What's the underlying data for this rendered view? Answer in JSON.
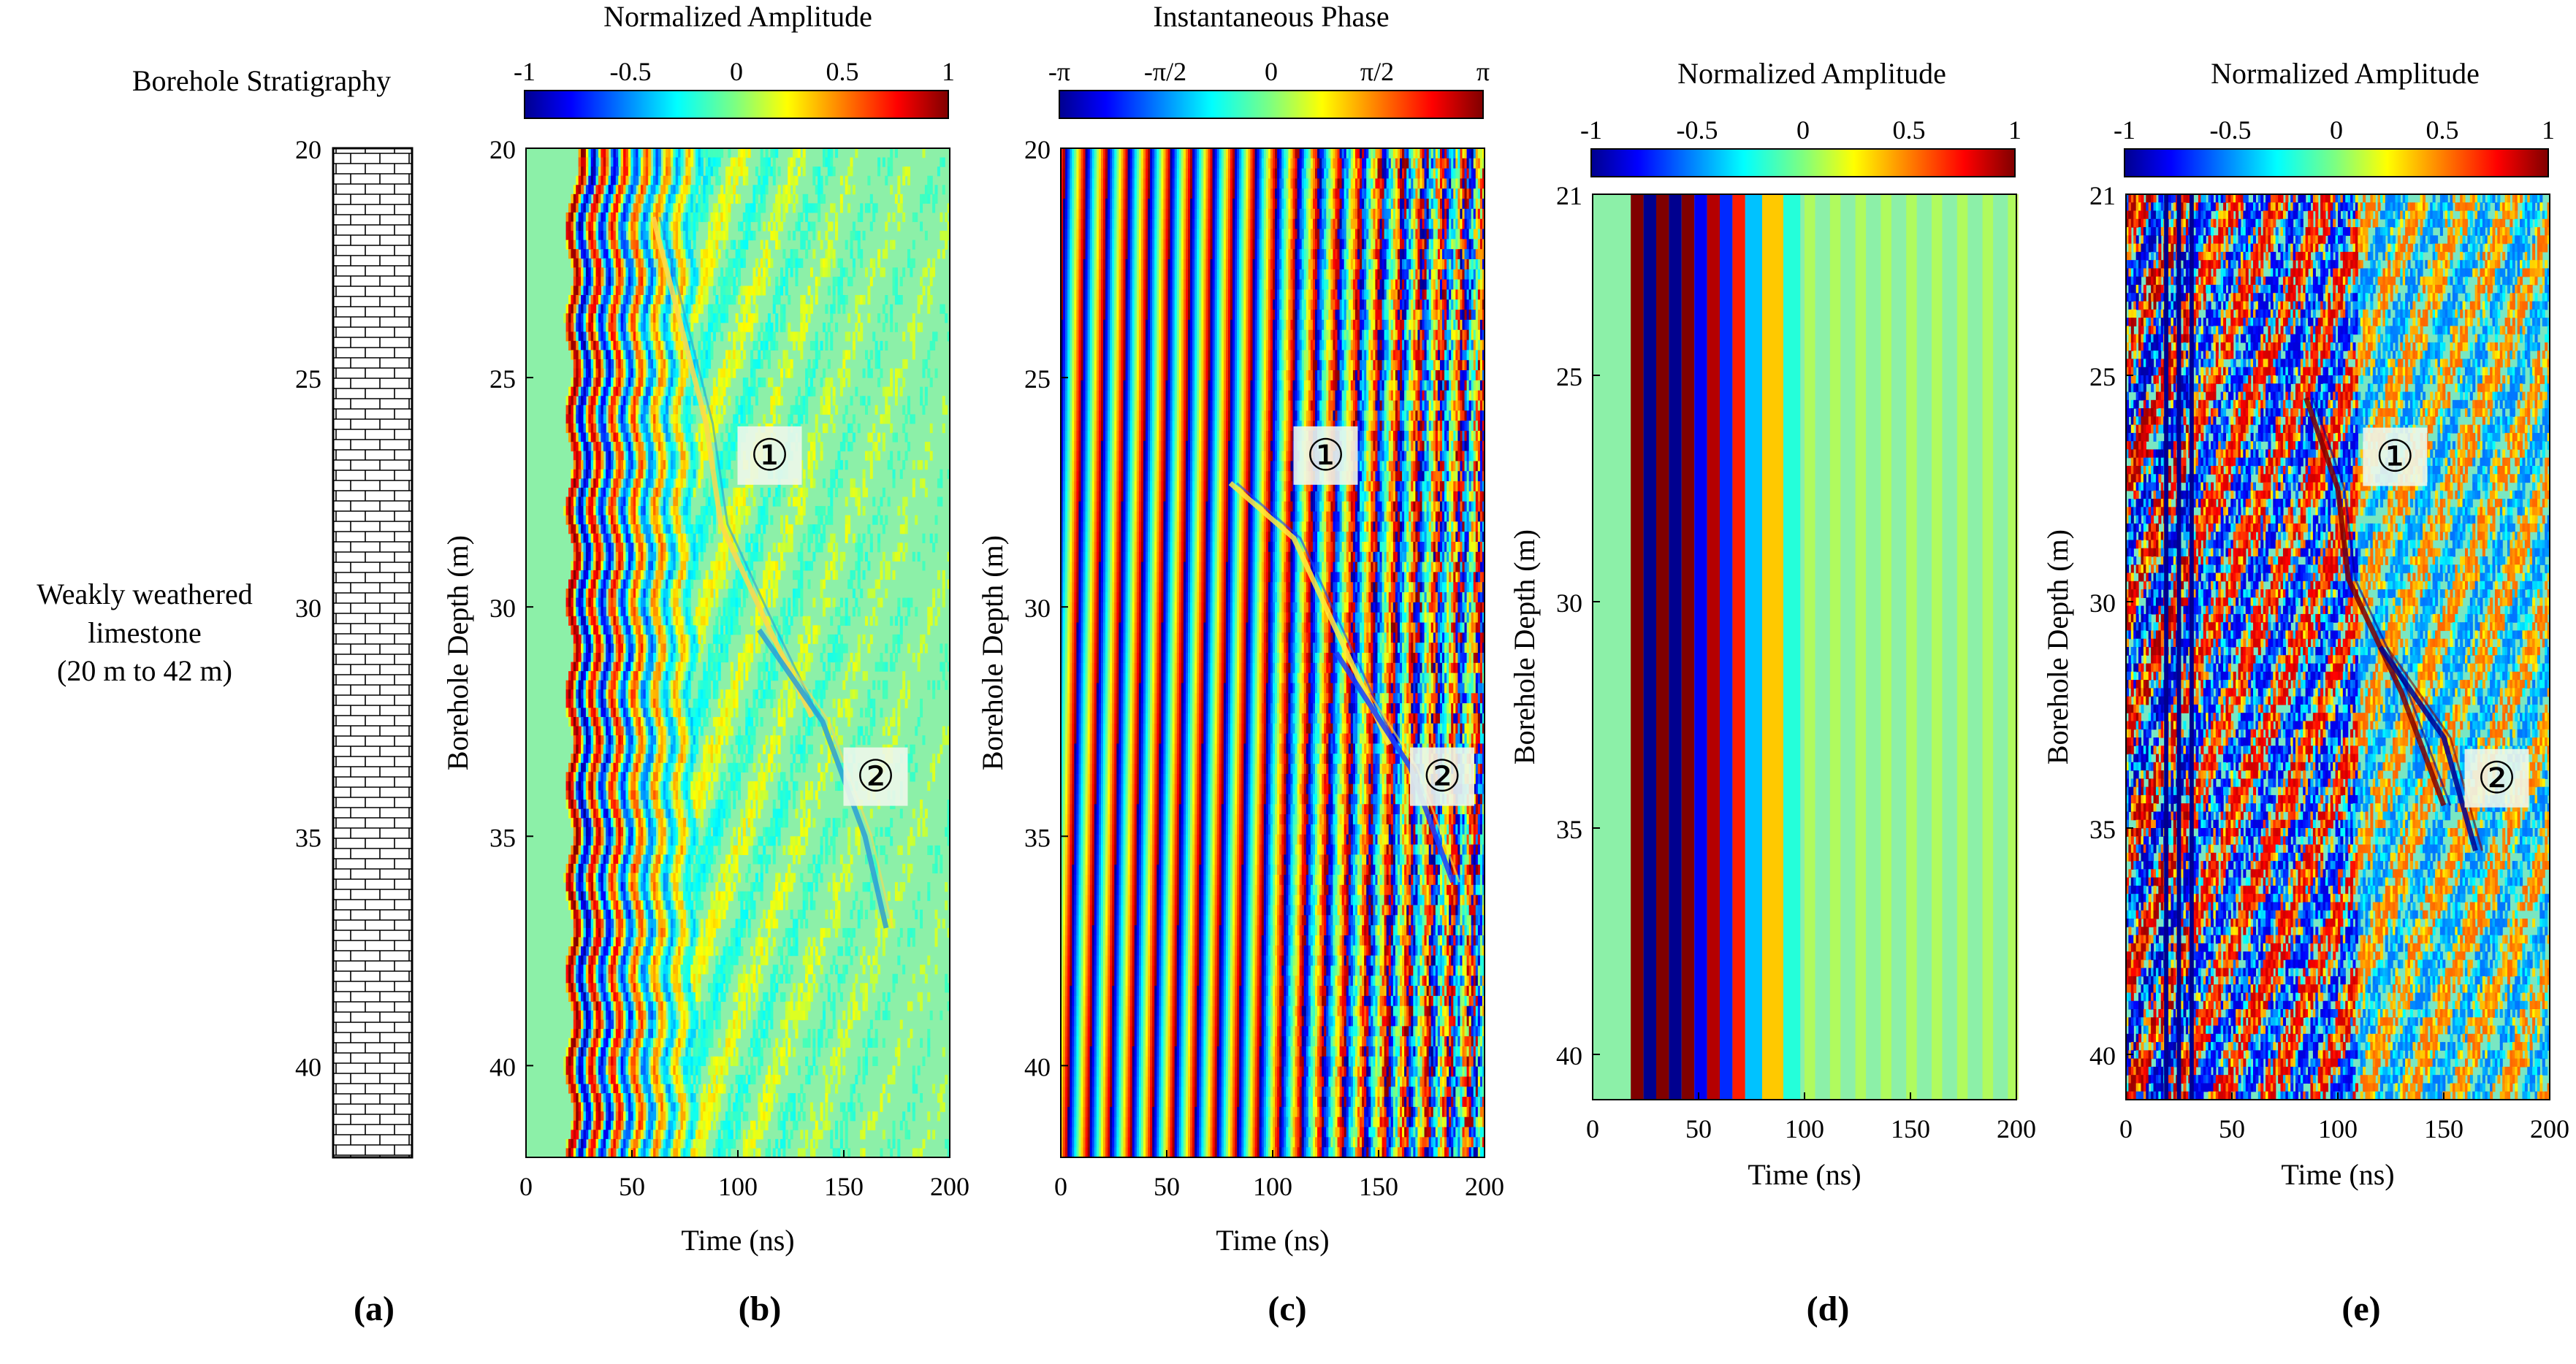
{
  "figure": {
    "panel_letters": [
      "(a)",
      "(b)",
      "(c)",
      "(d)",
      "(e)"
    ]
  },
  "chart_data": [
    {
      "id": "a",
      "type": "stratigraphic-column",
      "title": "Borehole Stratigraphy",
      "ylim": [
        20,
        42
      ],
      "yticks": [
        20,
        25,
        30,
        35,
        40
      ],
      "layer_label": [
        "Weakly weathered",
        "limestone",
        "(20 m to 42 m)"
      ],
      "layer_top": 20,
      "layer_bottom": 42,
      "pattern": "brick"
    },
    {
      "id": "b",
      "type": "heatmap",
      "colorbar_title": "Normalized Amplitude",
      "colorbar_ticks": [
        "-1",
        "-0.5",
        "0",
        "0.5",
        "1"
      ],
      "colorbar_range": [
        -1,
        1
      ],
      "colormap": "jet",
      "xlabel": "Time (ns)",
      "ylabel": "Borehole Depth (m)",
      "xlim": [
        0,
        200
      ],
      "ylim": [
        20,
        42
      ],
      "xticks": [
        0,
        50,
        100,
        150,
        200
      ],
      "yticks": [
        20,
        25,
        30,
        35,
        40
      ],
      "direct_wave_start_ns": 20,
      "direct_wave_band_ns": 60,
      "reflections": [
        {
          "marker": "①",
          "marker_at": [
            115,
            26.7
          ],
          "curve": [
            [
              60,
              21.5
            ],
            [
              85,
              26
            ],
            [
              92,
              28.2
            ],
            [
              112,
              30.2
            ],
            [
              135,
              32.4
            ]
          ]
        },
        {
          "marker": "②",
          "marker_at": [
            165,
            33.7
          ],
          "curve": [
            [
              110,
              30.5
            ],
            [
              140,
              32.5
            ],
            [
              160,
              35
            ],
            [
              170,
              37
            ]
          ]
        }
      ]
    },
    {
      "id": "c",
      "type": "heatmap",
      "colorbar_title": "Instantaneous Phase",
      "colorbar_ticks": [
        "-π",
        "-π/2",
        "0",
        "π/2",
        "π"
      ],
      "colorbar_range": [
        -3.1416,
        3.1416
      ],
      "colormap": "jet",
      "xlabel": "Time (ns)",
      "ylabel": "Borehole Depth (m)",
      "xlim": [
        0,
        200
      ],
      "ylim": [
        20,
        42
      ],
      "xticks": [
        0,
        50,
        100,
        150,
        200
      ],
      "yticks": [
        20,
        25,
        30,
        35,
        40
      ],
      "reflections": [
        {
          "marker": "①",
          "marker_at": [
            125,
            26.7
          ],
          "curve": [
            [
              80,
              27.3
            ],
            [
              110,
              28.5
            ],
            [
              130,
              30.5
            ],
            [
              155,
              33
            ]
          ]
        },
        {
          "marker": "②",
          "marker_at": [
            180,
            33.7
          ],
          "curve": [
            [
              130,
              31
            ],
            [
              165,
              33.5
            ],
            [
              185,
              36
            ]
          ]
        }
      ]
    },
    {
      "id": "d",
      "type": "heatmap",
      "colorbar_title": "Normalized Amplitude",
      "colorbar_ticks": [
        "-1",
        "-0.5",
        "0",
        "0.5",
        "1"
      ],
      "colorbar_range": [
        -1,
        1
      ],
      "colormap": "jet",
      "xlabel": "Time (ns)",
      "ylabel": "Borehole Depth (m)",
      "xlim": [
        0,
        200
      ],
      "ylim": [
        21,
        41
      ],
      "xticks": [
        0,
        50,
        100,
        150,
        200
      ],
      "yticks": [
        25,
        30,
        35,
        40
      ],
      "ytick_labels": [
        "21",
        "25",
        "30",
        "35",
        "40"
      ],
      "ytick_label_values": [
        21,
        25,
        30,
        35,
        40
      ],
      "vertical_bands": [
        {
          "t": 18,
          "v": 1
        },
        {
          "t": 24,
          "v": -1
        },
        {
          "t": 30,
          "v": 1
        },
        {
          "t": 36,
          "v": -1
        },
        {
          "t": 42,
          "v": 1
        },
        {
          "t": 48,
          "v": -0.8
        },
        {
          "t": 54,
          "v": 0.9
        },
        {
          "t": 60,
          "v": -0.7
        },
        {
          "t": 66,
          "v": 0.7
        },
        {
          "t": 72,
          "v": -0.4
        },
        {
          "t": 80,
          "v": 0.35
        },
        {
          "t": 90,
          "v": -0.2
        }
      ]
    },
    {
      "id": "e",
      "type": "heatmap",
      "colorbar_title": "Normalized Amplitude",
      "colorbar_ticks": [
        "-1",
        "-0.5",
        "0",
        "0.5",
        "1"
      ],
      "colorbar_range": [
        -1,
        1
      ],
      "colormap": "jet",
      "xlabel": "Time (ns)",
      "ylabel": "Borehole Depth (m)",
      "xlim": [
        0,
        200
      ],
      "ylim": [
        21,
        41
      ],
      "xticks": [
        0,
        50,
        100,
        150,
        200
      ],
      "yticks": [
        25,
        30,
        35,
        40
      ],
      "ytick_labels": [
        "21",
        "25",
        "30",
        "35",
        "40"
      ],
      "ytick_label_values": [
        21,
        25,
        30,
        35,
        40
      ],
      "reflections": [
        {
          "marker": "①",
          "marker_at": [
            127,
            26.8
          ],
          "curve": [
            [
              85,
              25.5
            ],
            [
              100,
              27.5
            ],
            [
              105,
              29.5
            ],
            [
              130,
              32
            ],
            [
              150,
              34.5
            ]
          ]
        },
        {
          "marker": "②",
          "marker_at": [
            175,
            33.9
          ],
          "curve": [
            [
              120,
              31
            ],
            [
              150,
              33
            ],
            [
              165,
              35.5
            ]
          ]
        }
      ]
    }
  ]
}
